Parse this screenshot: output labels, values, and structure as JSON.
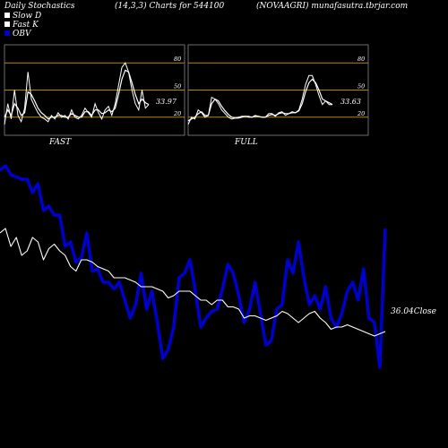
{
  "header": {
    "left": "Daily Stochastics",
    "middle": "(14,3,3) Charts for 544100",
    "right": "(NOVAAGRI) munafasutra.tbrjar.com"
  },
  "legend": [
    {
      "label": "Slow  D",
      "color": "#ffffff"
    },
    {
      "label": "Fast K",
      "color": "#ffffff"
    },
    {
      "label": "OBV",
      "color": "#0000cc"
    }
  ],
  "colors": {
    "background": "#000000",
    "level_line": "#b8860b",
    "stoch_line": "#ffffff",
    "obv_line": "#0000cc",
    "price_line": "#ffffff"
  },
  "chart_data": [
    {
      "type": "line",
      "panel": "FAST",
      "title": "FAST",
      "levels": [
        20,
        50,
        80
      ],
      "ylim": [
        0,
        100
      ],
      "last_value_label": "33.97",
      "series": [
        {
          "values": [
            12,
            35,
            18,
            50,
            22,
            15,
            30,
            70,
            40,
            32,
            25,
            20,
            18,
            15,
            22,
            18,
            25,
            20,
            22,
            18,
            28,
            20,
            18,
            22,
            30,
            25,
            20,
            35,
            25,
            18,
            28,
            32,
            22,
            35,
            55,
            75,
            80,
            70,
            50,
            35,
            28,
            50,
            30,
            34
          ]
        },
        {
          "values": [
            20,
            28,
            22,
            35,
            30,
            22,
            25,
            48,
            45,
            38,
            30,
            25,
            22,
            18,
            20,
            20,
            22,
            22,
            20,
            20,
            24,
            22,
            20,
            20,
            26,
            26,
            22,
            28,
            28,
            24,
            25,
            28,
            26,
            30,
            45,
            62,
            72,
            70,
            58,
            45,
            35,
            40,
            36,
            34
          ]
        }
      ]
    },
    {
      "type": "line",
      "panel": "FULL",
      "title": "FULL",
      "levels": [
        20,
        50,
        80
      ],
      "ylim": [
        0,
        100
      ],
      "last_value_label": "33.63",
      "series": [
        {
          "values": [
            12,
            20,
            18,
            28,
            25,
            20,
            22,
            42,
            40,
            35,
            28,
            24,
            20,
            18,
            19,
            20,
            21,
            21,
            20,
            20,
            22,
            21,
            20,
            20,
            24,
            24,
            21,
            25,
            26,
            22,
            24,
            26,
            25,
            28,
            40,
            56,
            66,
            66,
            56,
            44,
            34,
            38,
            34,
            34
          ]
        },
        {
          "values": [
            16,
            18,
            20,
            24,
            26,
            22,
            22,
            35,
            40,
            38,
            32,
            27,
            23,
            20,
            19,
            19,
            20,
            21,
            21,
            20,
            21,
            21,
            20,
            20,
            22,
            23,
            22,
            24,
            25,
            24,
            24,
            25,
            25,
            27,
            35,
            48,
            58,
            62,
            58,
            50,
            40,
            38,
            36,
            34
          ]
        }
      ]
    },
    {
      "type": "line",
      "panel": "OBV",
      "close_label": "36.04Close",
      "series": [
        {
          "name": "OBV",
          "values": [
            88,
            90,
            86,
            85,
            84,
            84,
            78,
            82,
            70,
            72,
            68,
            68,
            54,
            56,
            47,
            49,
            60,
            43,
            44,
            38,
            38,
            35,
            38,
            30,
            22,
            28,
            42,
            26,
            34,
            20,
            4,
            8,
            18,
            40,
            42,
            48,
            34,
            18,
            22,
            25,
            26,
            35,
            46,
            42,
            32,
            20,
            26,
            38,
            24,
            10,
            12,
            26,
            28,
            48,
            42,
            56,
            40,
            28,
            32,
            26,
            36,
            22,
            18,
            24,
            34,
            38,
            30,
            44,
            22,
            20,
            0,
            62
          ]
        },
        {
          "name": "Price",
          "values": [
            60,
            62,
            54,
            58,
            50,
            52,
            58,
            56,
            48,
            53,
            55,
            52,
            50,
            45,
            43,
            48,
            48,
            47,
            45,
            44,
            43,
            40,
            40,
            40,
            39,
            38,
            36,
            36,
            36,
            35,
            34,
            31,
            32,
            34,
            34,
            34,
            32,
            30,
            30,
            28,
            30,
            30,
            27,
            27,
            26,
            22,
            23,
            23,
            22,
            21,
            22,
            23,
            25,
            24,
            22,
            20,
            22,
            24,
            25,
            22,
            20,
            17,
            18,
            18,
            19,
            18,
            17,
            16,
            15,
            14,
            15,
            16
          ]
        }
      ]
    }
  ]
}
